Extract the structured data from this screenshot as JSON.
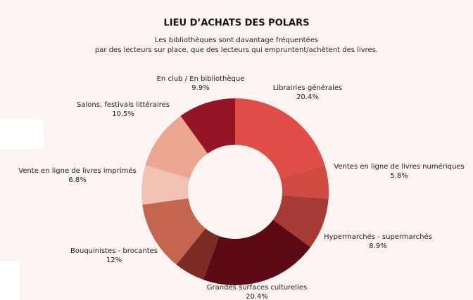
{
  "chart_data": {
    "type": "donut",
    "title": "LIEU D’ACHATS DES POLARS",
    "subtitle": [
      "Les bibliothèques sont davantage fréquentées",
      "par des lecteurs sur place, que des lecteurs qui empruntent/achètent des livres."
    ],
    "categories": [
      "Librairies générales",
      "Ventes en ligne de livres numériques",
      "Hypermarchés - supermarchés",
      "Grandes surfaces culturelles",
      null,
      "Bouquinistes - brocantes",
      "Vente en ligne de livres imprimés",
      "Salons, festivals littéraires",
      "En club / En bibliothèque"
    ],
    "values": [
      20.4,
      5.8,
      8.9,
      20.4,
      5.3,
      12,
      6.8,
      10.5,
      9.9
    ],
    "value_labels": [
      "20.4%",
      "5.8%",
      "8.9%",
      "20.4%",
      null,
      "12%",
      "6.8%",
      "10.5%",
      "9.9%"
    ],
    "colors": [
      "#e04d48",
      "#cf4a43",
      "#a73a35",
      "#5b0914",
      "#7b2a24",
      "#c4664f",
      "#f2c3b4",
      "#eba78f",
      "#951525"
    ]
  }
}
